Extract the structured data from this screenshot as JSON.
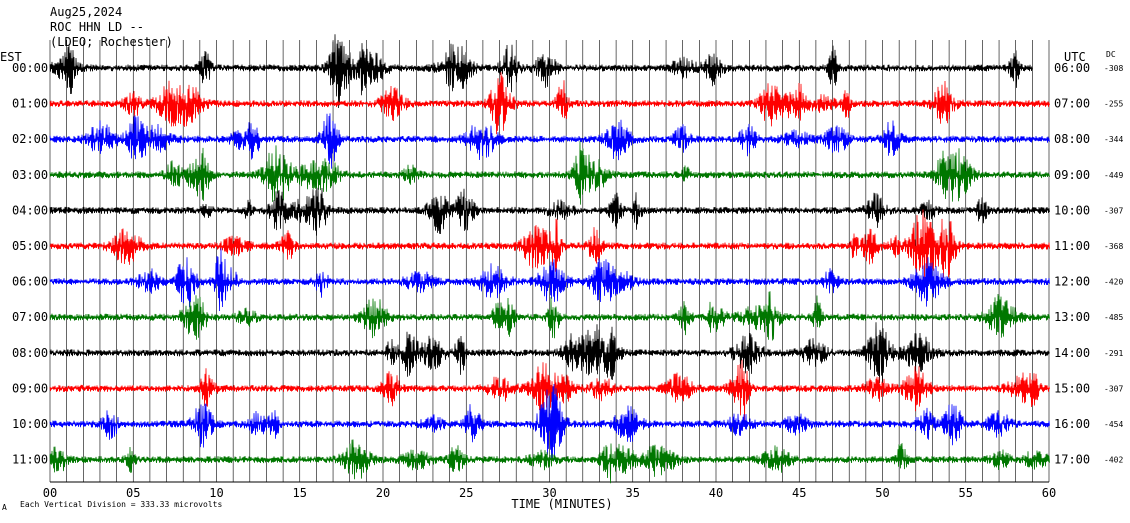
{
  "header": {
    "date": "Aug25,2024",
    "station": "ROC HHN LD --",
    "network": "(LDEO; Rochester)"
  },
  "left_axis_label": "EST",
  "right_axis_label": "UTC",
  "dc_label": "DC",
  "footer_note": "Each Vertical Division =  333.33 microvolts",
  "footer_mark": "A",
  "colors": {
    "black": "#000000",
    "red": "#ff0000",
    "blue": "#0000ff",
    "green": "#007700",
    "grid": "#000000"
  },
  "chart_data": {
    "type": "line",
    "xlabel": "TIME (MINUTES)",
    "xlim": [
      0,
      60
    ],
    "x_ticks": [
      0,
      5,
      10,
      15,
      20,
      25,
      30,
      35,
      40,
      45,
      50,
      55,
      60
    ],
    "x_tick_labels": [
      "00",
      "05",
      "10",
      "15",
      "20",
      "25",
      "30",
      "35",
      "40",
      "45",
      "50",
      "55",
      "60"
    ],
    "series": [
      {
        "est": "00:00",
        "utc": "06:00",
        "dc": "-308",
        "color": "black",
        "end_minute": 59
      },
      {
        "est": "01:00",
        "utc": "07:00",
        "dc": "-255",
        "color": "red",
        "end_minute": 60
      },
      {
        "est": "02:00",
        "utc": "08:00",
        "dc": "-344",
        "color": "blue",
        "end_minute": 60
      },
      {
        "est": "03:00",
        "utc": "09:00",
        "dc": "-449",
        "color": "green",
        "end_minute": 60
      },
      {
        "est": "04:00",
        "utc": "10:00",
        "dc": "-307",
        "color": "black",
        "end_minute": 60
      },
      {
        "est": "05:00",
        "utc": "11:00",
        "dc": "-368",
        "color": "red",
        "end_minute": 60
      },
      {
        "est": "06:00",
        "utc": "12:00",
        "dc": "-420",
        "color": "blue",
        "end_minute": 60
      },
      {
        "est": "07:00",
        "utc": "13:00",
        "dc": "-485",
        "color": "green",
        "end_minute": 60
      },
      {
        "est": "08:00",
        "utc": "14:00",
        "dc": "-291",
        "color": "black",
        "end_minute": 60
      },
      {
        "est": "09:00",
        "utc": "15:00",
        "dc": "-307",
        "color": "red",
        "end_minute": 60
      },
      {
        "est": "10:00",
        "utc": "16:00",
        "dc": "-454",
        "color": "blue",
        "end_minute": 60
      },
      {
        "est": "11:00",
        "utc": "17:00",
        "dc": "-402",
        "color": "green",
        "end_minute": 60
      }
    ],
    "grid": "vertical"
  }
}
